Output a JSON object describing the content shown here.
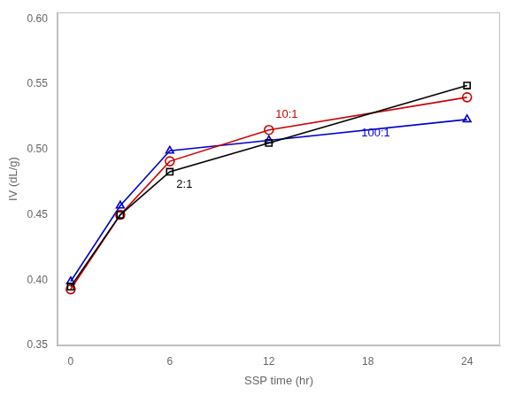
{
  "chart_data": {
    "type": "line",
    "x_label": "SSP time (hr)",
    "y_label": "IV (dL/g)",
    "x": [
      0,
      3,
      6,
      12,
      24
    ],
    "series": [
      {
        "name": "2:1",
        "color": "#000000",
        "marker": "square",
        "values": [
          0.395,
          0.45,
          0.483,
          0.505,
          0.549
        ]
      },
      {
        "name": "10:1",
        "color": "#cc0000",
        "marker": "circle",
        "values": [
          0.393,
          0.45,
          0.491,
          0.515,
          0.54
        ]
      },
      {
        "name": "100:1",
        "color": "#0000cc",
        "marker": "triangle",
        "values": [
          0.399,
          0.457,
          0.499,
          0.507,
          0.523
        ]
      }
    ],
    "annotations": [
      {
        "text": "2:1",
        "x": 6.4,
        "y": 0.471,
        "color": "#000000"
      },
      {
        "text": "10:1",
        "x": 12.4,
        "y": 0.524,
        "color": "#cc0000"
      },
      {
        "text": "100:1",
        "x": 17.6,
        "y": 0.51,
        "color": "#0000cc"
      }
    ],
    "xlim": [
      -0.8,
      26
    ],
    "ylim": [
      0.35,
      0.605
    ],
    "xticks": [
      0,
      6,
      12,
      18,
      24
    ],
    "yticks": [
      0.35,
      {
        "value": 0.4,
        "label": "0.40"
      },
      0.45,
      {
        "value": 0.5,
        "label": "0.50"
      },
      0.55,
      {
        "value": 0.6,
        "label": "0.60"
      }
    ],
    "grid": false,
    "legend": false
  }
}
